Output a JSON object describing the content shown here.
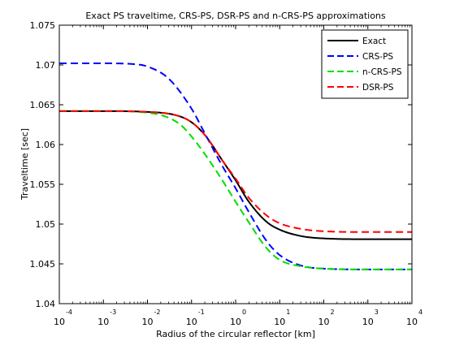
{
  "chart_data": {
    "type": "line",
    "title": "Exact PS traveltime, CRS-PS, DSR-PS and n-CRS-PS approximations",
    "xlabel": "Radius of the circular reflector [km]",
    "ylabel": "Traveltime [sec]",
    "x_scale": "log",
    "xlim": [
      0.0001,
      10000
    ],
    "ylim": [
      1.04,
      1.075
    ],
    "x_ticks": [
      {
        "base": "10",
        "exp": "-4",
        "value": 0.0001
      },
      {
        "base": "10",
        "exp": "-3",
        "value": 0.001
      },
      {
        "base": "10",
        "exp": "-2",
        "value": 0.01
      },
      {
        "base": "10",
        "exp": "-1",
        "value": 0.1
      },
      {
        "base": "10",
        "exp": "0",
        "value": 1
      },
      {
        "base": "10",
        "exp": "1",
        "value": 10
      },
      {
        "base": "10",
        "exp": "2",
        "value": 100
      },
      {
        "base": "10",
        "exp": "3",
        "value": 1000
      },
      {
        "base": "10",
        "exp": "4",
        "value": 10000
      }
    ],
    "y_ticks": [
      "1.04",
      "1.045",
      "1.05",
      "1.055",
      "1.06",
      "1.065",
      "1.07",
      "1.075"
    ],
    "grid": false,
    "legend_position": "top-right",
    "series": [
      {
        "name": "Exact",
        "color": "#000000",
        "dash": "solid",
        "x": [
          0.0001,
          0.001,
          0.01,
          0.05,
          0.1,
          0.2,
          0.5,
          1,
          2,
          5,
          10,
          30,
          100,
          1000,
          10000
        ],
        "y": [
          1.0642,
          1.0642,
          1.0641,
          1.0636,
          1.0628,
          1.0612,
          1.058,
          1.0555,
          1.0528,
          1.0503,
          1.0493,
          1.0485,
          1.0482,
          1.0481,
          1.0481
        ]
      },
      {
        "name": "CRS-PS",
        "color": "#0000ff",
        "dash": "dashed",
        "x": [
          0.0001,
          0.001,
          0.005,
          0.01,
          0.03,
          0.1,
          0.2,
          0.5,
          1,
          2,
          5,
          10,
          30,
          100,
          1000,
          10000
        ],
        "y": [
          1.0702,
          1.0702,
          1.0701,
          1.0698,
          1.0683,
          1.0645,
          1.0614,
          1.0573,
          1.0545,
          1.0515,
          1.0479,
          1.0461,
          1.0448,
          1.0444,
          1.0443,
          1.0443
        ]
      },
      {
        "name": "n-CRS-PS",
        "color": "#00dd00",
        "dash": "dashed",
        "x": [
          0.0001,
          0.001,
          0.01,
          0.05,
          0.1,
          0.2,
          0.5,
          1,
          2,
          5,
          10,
          30,
          100,
          1000,
          10000
        ],
        "y": [
          1.0642,
          1.0642,
          1.064,
          1.0627,
          1.061,
          1.0588,
          1.0555,
          1.0528,
          1.0502,
          1.047,
          1.0455,
          1.0447,
          1.0444,
          1.0443,
          1.0443
        ]
      },
      {
        "name": "DSR-PS",
        "color": "#ff0000",
        "dash": "dashed",
        "x": [
          0.0001,
          0.001,
          0.01,
          0.05,
          0.1,
          0.2,
          0.5,
          1,
          2,
          5,
          10,
          30,
          100,
          1000,
          10000
        ],
        "y": [
          1.0642,
          1.0642,
          1.0641,
          1.0636,
          1.0628,
          1.0612,
          1.058,
          1.0557,
          1.0533,
          1.0511,
          1.0501,
          1.0494,
          1.0491,
          1.049,
          1.049
        ]
      }
    ]
  }
}
